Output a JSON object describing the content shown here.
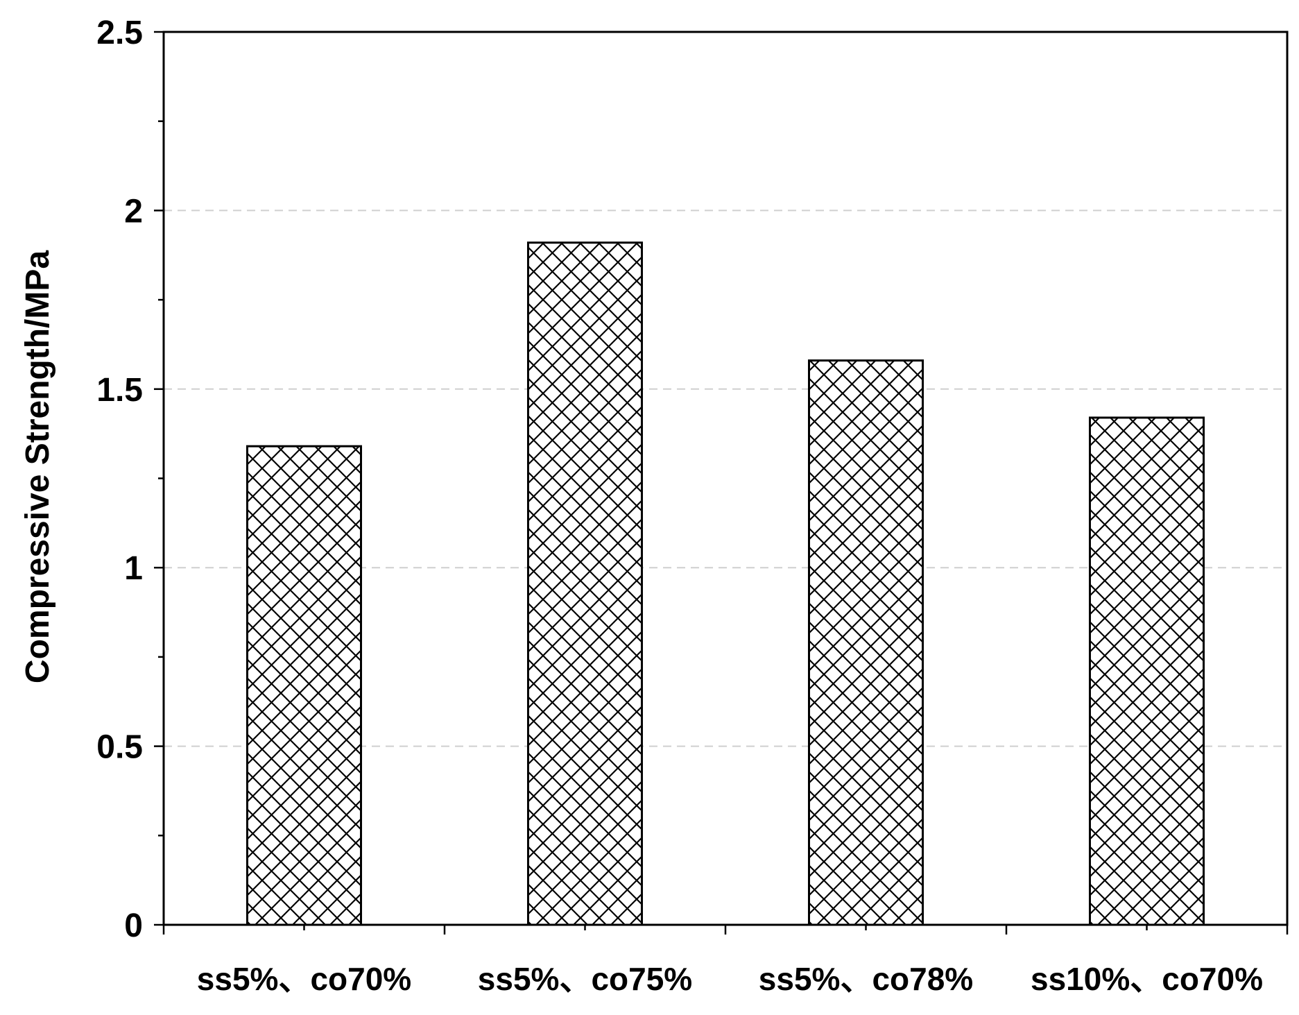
{
  "chart_data": {
    "type": "bar",
    "categories": [
      "ss5%、co70%",
      "ss5%、co75%",
      "ss5%、co78%",
      "ss10%、co70%"
    ],
    "values": [
      1.34,
      1.91,
      1.58,
      1.42
    ],
    "ylabel": "Compressive Strength/MPa",
    "xlabel": "",
    "ylim": [
      0,
      2.5
    ],
    "yticks": [
      "0",
      "0.5",
      "1",
      "1.5",
      "2",
      "2.5"
    ],
    "grid": "horizontal dashed",
    "fill_pattern": "cross-hatch",
    "colors": {
      "bar_fill": "#ffffff",
      "bar_stroke": "#000000",
      "hatch": "#000000",
      "grid": "#cfcfcf"
    }
  }
}
